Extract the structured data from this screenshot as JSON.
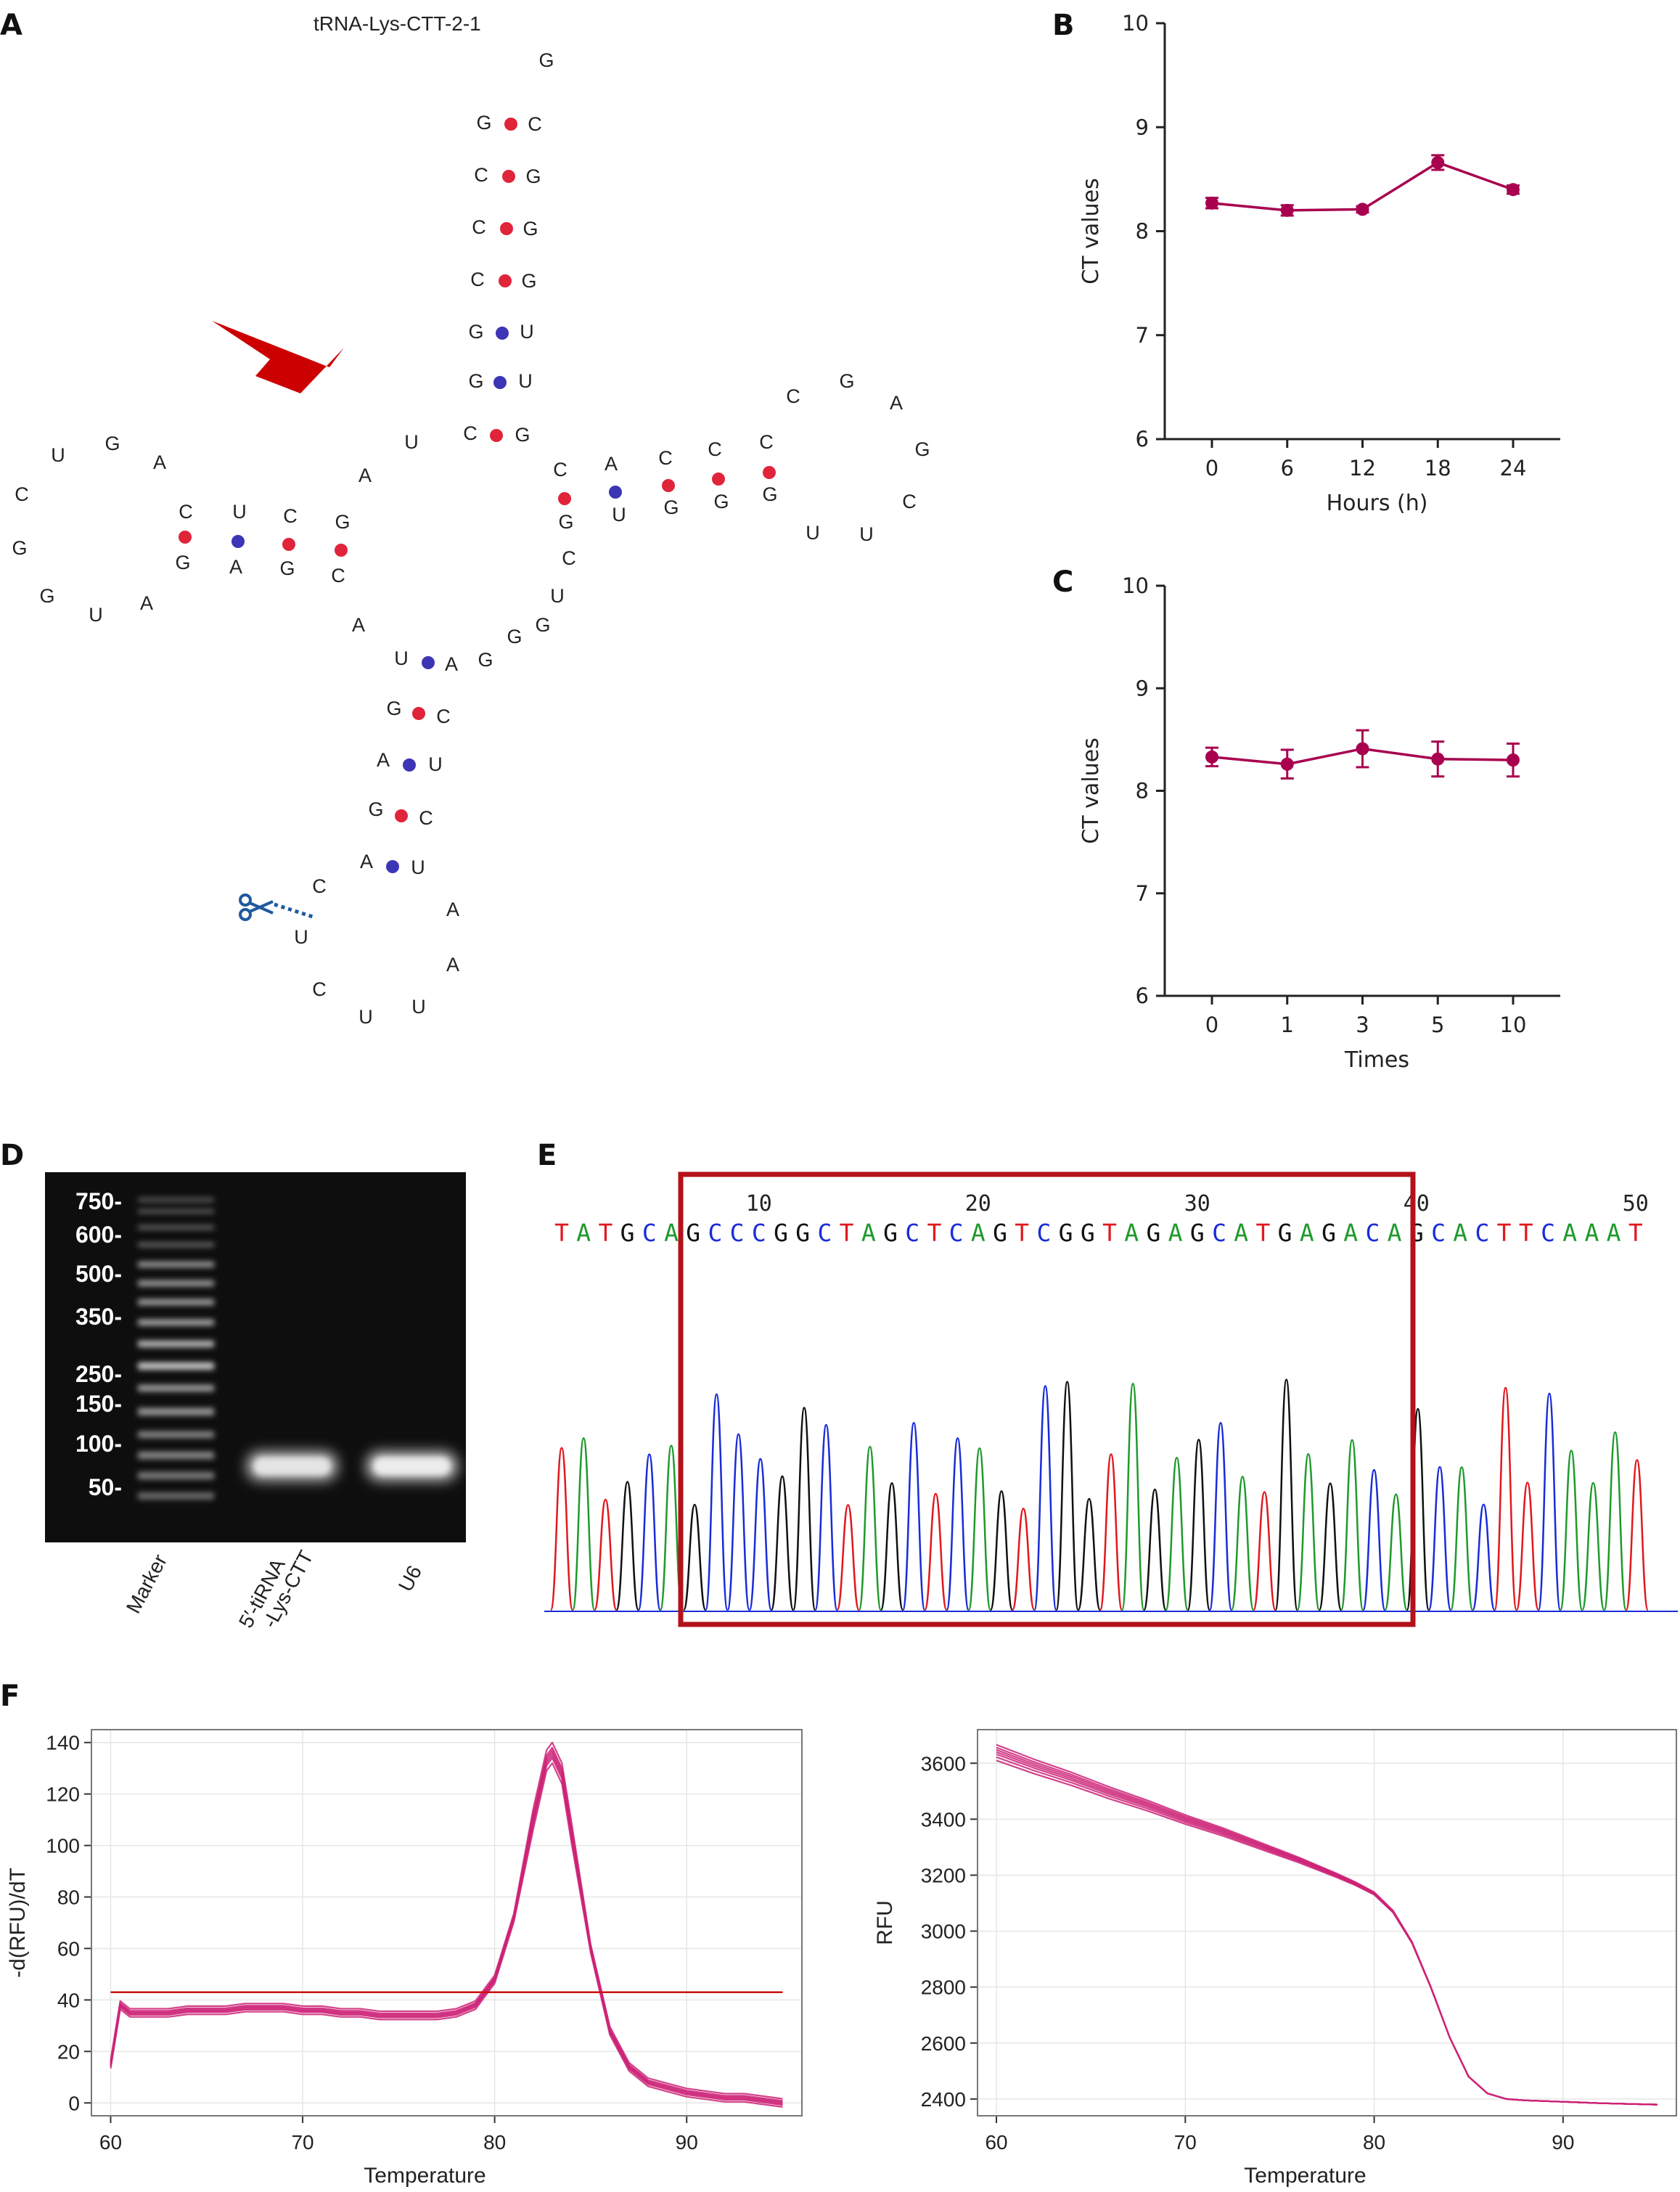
{
  "panels": {
    "a": "A",
    "b": "B",
    "c": "C",
    "d": "D",
    "e": "E",
    "f": "F"
  },
  "trna": {
    "title": "tRNA-Lys-CTT-2-1",
    "nucleotides": [
      {
        "n": "G",
        "x": 753,
        "y": 92
      },
      {
        "n": "G",
        "x": 667,
        "y": 178
      },
      {
        "n": "C",
        "x": 737,
        "y": 180
      },
      {
        "n": "C",
        "x": 663,
        "y": 250
      },
      {
        "n": "G",
        "x": 735,
        "y": 252
      },
      {
        "n": "C",
        "x": 660,
        "y": 322
      },
      {
        "n": "G",
        "x": 731,
        "y": 324
      },
      {
        "n": "C",
        "x": 658,
        "y": 394
      },
      {
        "n": "G",
        "x": 729,
        "y": 396
      },
      {
        "n": "G",
        "x": 656,
        "y": 466
      },
      {
        "n": "U",
        "x": 726,
        "y": 466
      },
      {
        "n": "G",
        "x": 656,
        "y": 534
      },
      {
        "n": "U",
        "x": 724,
        "y": 534
      },
      {
        "n": "C",
        "x": 648,
        "y": 606
      },
      {
        "n": "G",
        "x": 720,
        "y": 608
      },
      {
        "n": "U",
        "x": 567,
        "y": 618
      },
      {
        "n": "A",
        "x": 503,
        "y": 664
      },
      {
        "n": "U",
        "x": 80,
        "y": 636
      },
      {
        "n": "G",
        "x": 155,
        "y": 620
      },
      {
        "n": "A",
        "x": 220,
        "y": 646
      },
      {
        "n": "C",
        "x": 30,
        "y": 690
      },
      {
        "n": "G",
        "x": 27,
        "y": 764
      },
      {
        "n": "G",
        "x": 65,
        "y": 830
      },
      {
        "n": "U",
        "x": 132,
        "y": 856
      },
      {
        "n": "A",
        "x": 202,
        "y": 840
      },
      {
        "n": "C",
        "x": 256,
        "y": 714
      },
      {
        "n": "U",
        "x": 330,
        "y": 714
      },
      {
        "n": "C",
        "x": 400,
        "y": 720
      },
      {
        "n": "G",
        "x": 472,
        "y": 728
      },
      {
        "n": "G",
        "x": 252,
        "y": 784
      },
      {
        "n": "A",
        "x": 325,
        "y": 790
      },
      {
        "n": "G",
        "x": 396,
        "y": 792
      },
      {
        "n": "C",
        "x": 466,
        "y": 802
      },
      {
        "n": "A",
        "x": 494,
        "y": 870
      },
      {
        "n": "C",
        "x": 772,
        "y": 656
      },
      {
        "n": "A",
        "x": 842,
        "y": 648
      },
      {
        "n": "C",
        "x": 917,
        "y": 640
      },
      {
        "n": "C",
        "x": 985,
        "y": 628
      },
      {
        "n": "C",
        "x": 1056,
        "y": 618
      },
      {
        "n": "G",
        "x": 780,
        "y": 728
      },
      {
        "n": "U",
        "x": 853,
        "y": 718
      },
      {
        "n": "G",
        "x": 925,
        "y": 708
      },
      {
        "n": "G",
        "x": 994,
        "y": 700
      },
      {
        "n": "G",
        "x": 1061,
        "y": 690
      },
      {
        "n": "C",
        "x": 1093,
        "y": 555
      },
      {
        "n": "G",
        "x": 1167,
        "y": 534
      },
      {
        "n": "A",
        "x": 1235,
        "y": 564
      },
      {
        "n": "G",
        "x": 1271,
        "y": 628
      },
      {
        "n": "C",
        "x": 1253,
        "y": 700
      },
      {
        "n": "U",
        "x": 1194,
        "y": 745
      },
      {
        "n": "U",
        "x": 1120,
        "y": 743
      },
      {
        "n": "C",
        "x": 784,
        "y": 778
      },
      {
        "n": "U",
        "x": 768,
        "y": 830
      },
      {
        "n": "G",
        "x": 748,
        "y": 870
      },
      {
        "n": "G",
        "x": 709,
        "y": 886
      },
      {
        "n": "G",
        "x": 669,
        "y": 918
      },
      {
        "n": "A",
        "x": 622,
        "y": 924
      },
      {
        "n": "U",
        "x": 553,
        "y": 916
      },
      {
        "n": "G",
        "x": 543,
        "y": 985
      },
      {
        "n": "C",
        "x": 611,
        "y": 996
      },
      {
        "n": "A",
        "x": 528,
        "y": 1056
      },
      {
        "n": "U",
        "x": 600,
        "y": 1062
      },
      {
        "n": "G",
        "x": 518,
        "y": 1124
      },
      {
        "n": "C",
        "x": 587,
        "y": 1136
      },
      {
        "n": "A",
        "x": 505,
        "y": 1196
      },
      {
        "n": "U",
        "x": 576,
        "y": 1204
      },
      {
        "n": "C",
        "x": 440,
        "y": 1230
      },
      {
        "n": "A",
        "x": 624,
        "y": 1262
      },
      {
        "n": "U",
        "x": 415,
        "y": 1300
      },
      {
        "n": "A",
        "x": 624,
        "y": 1338
      },
      {
        "n": "C",
        "x": 440,
        "y": 1372
      },
      {
        "n": "U",
        "x": 577,
        "y": 1396
      },
      {
        "n": "U",
        "x": 504,
        "y": 1410
      }
    ],
    "pair_colors": {
      "gc": "#e0243a",
      "gu_au": "#3c35b5"
    },
    "arrow_color": "#cc0000",
    "scissors_color": "#1f5a9e"
  },
  "chart_b": {
    "type": "line",
    "categories": [
      "0",
      "6",
      "12",
      "18",
      "24"
    ],
    "values": [
      8.27,
      8.2,
      8.21,
      8.66,
      8.4
    ],
    "errors": [
      0.05,
      0.05,
      0.03,
      0.07,
      0.04
    ],
    "xlabel": "Hours (h)",
    "ylabel": "CT values",
    "ylim": [
      6,
      10
    ],
    "yticks": [
      "6",
      "7",
      "8",
      "9",
      "10"
    ],
    "color": "#a8004f"
  },
  "chart_c": {
    "type": "line",
    "categories": [
      "0",
      "1",
      "3",
      "5",
      "10"
    ],
    "values": [
      8.33,
      8.26,
      8.41,
      8.31,
      8.3
    ],
    "errors": [
      0.09,
      0.14,
      0.18,
      0.17,
      0.16
    ],
    "xlabel": "Times",
    "ylabel": "CT values",
    "ylim": [
      6,
      10
    ],
    "yticks": [
      "6",
      "7",
      "8",
      "9",
      "10"
    ],
    "color": "#a8004f"
  },
  "gel": {
    "marker_labels": [
      "750-",
      "600-",
      "500-",
      "350-",
      "250-",
      "150-",
      "100-",
      "50-"
    ],
    "lanes": [
      "Marker",
      "5′-tiRNA",
      "-Lys-CTT",
      "U6"
    ]
  },
  "sequencing": {
    "numbers": [
      "10",
      "20",
      "30",
      "40",
      "50"
    ],
    "sequence": "TATGCAGCCCGGCTAGCTCAGTCGGTAGAGCATGAGACAGCACTTCAAAT",
    "base_colors": {
      "A": "#1f9a2c",
      "C": "#1a2cd8",
      "G": "#111111",
      "T": "#e0191e"
    },
    "box_color": "#b3121a"
  },
  "melt_derivative": {
    "type": "line",
    "xlabel": "Temperature",
    "ylabel": "-d(RFU)/dT",
    "xticks": [
      "60",
      "70",
      "80",
      "90"
    ],
    "yticks": [
      "0",
      "20",
      "40",
      "60",
      "80",
      "100",
      "120",
      "140"
    ],
    "xlim": [
      59,
      96
    ],
    "ylim": [
      -5,
      145
    ],
    "threshold": 43,
    "curve": [
      [
        60,
        15
      ],
      [
        60.5,
        38
      ],
      [
        61,
        35
      ],
      [
        62,
        35
      ],
      [
        63,
        35
      ],
      [
        64,
        36
      ],
      [
        65,
        36
      ],
      [
        66,
        36
      ],
      [
        67,
        37
      ],
      [
        68,
        37
      ],
      [
        69,
        37
      ],
      [
        70,
        36
      ],
      [
        71,
        36
      ],
      [
        72,
        35
      ],
      [
        73,
        35
      ],
      [
        74,
        34
      ],
      [
        75,
        34
      ],
      [
        76,
        34
      ],
      [
        77,
        34
      ],
      [
        78,
        35
      ],
      [
        79,
        38
      ],
      [
        80,
        48
      ],
      [
        81,
        72
      ],
      [
        82,
        110
      ],
      [
        82.7,
        133
      ],
      [
        83,
        136
      ],
      [
        83.5,
        128
      ],
      [
        84,
        105
      ],
      [
        85,
        60
      ],
      [
        86,
        28
      ],
      [
        87,
        14
      ],
      [
        88,
        8
      ],
      [
        89,
        6
      ],
      [
        90,
        4
      ],
      [
        91,
        3
      ],
      [
        92,
        2
      ],
      [
        93,
        2
      ],
      [
        94,
        1
      ],
      [
        95,
        0
      ]
    ],
    "color": "#cc2277",
    "threshold_color": "#cc1111"
  },
  "melt_curve": {
    "type": "line",
    "xlabel": "Temperature",
    "ylabel": "RFU",
    "xticks": [
      "60",
      "70",
      "80",
      "90"
    ],
    "yticks": [
      "2400",
      "2600",
      "2800",
      "3000",
      "3200",
      "3400",
      "3600"
    ],
    "xlim": [
      59,
      96
    ],
    "ylim": [
      2340,
      3720
    ],
    "curve": [
      [
        60,
        3640
      ],
      [
        62,
        3590
      ],
      [
        64,
        3545
      ],
      [
        66,
        3495
      ],
      [
        68,
        3450
      ],
      [
        70,
        3400
      ],
      [
        72,
        3355
      ],
      [
        74,
        3305
      ],
      [
        76,
        3255
      ],
      [
        78,
        3200
      ],
      [
        79,
        3170
      ],
      [
        80,
        3135
      ],
      [
        81,
        3070
      ],
      [
        82,
        2960
      ],
      [
        83,
        2800
      ],
      [
        84,
        2620
      ],
      [
        85,
        2480
      ],
      [
        86,
        2420
      ],
      [
        87,
        2400
      ],
      [
        88,
        2395
      ],
      [
        90,
        2390
      ],
      [
        92,
        2385
      ],
      [
        95,
        2380
      ]
    ],
    "color": "#cc2277"
  }
}
